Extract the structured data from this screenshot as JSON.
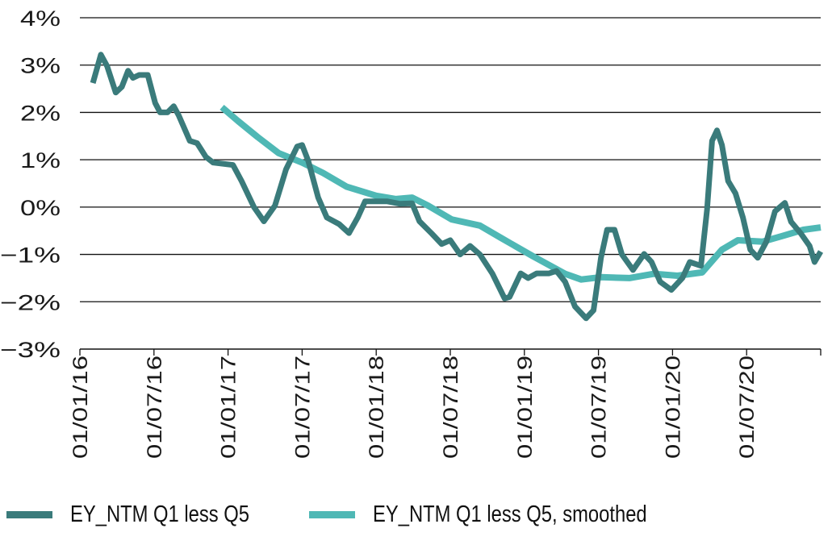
{
  "chart_data": {
    "type": "line",
    "title": "",
    "xlabel": "",
    "ylabel": "",
    "x_unit": "months since 01/01/16",
    "xlim": [
      0,
      60
    ],
    "ylim": [
      -3,
      4
    ],
    "y_ticks": [
      4,
      3,
      2,
      1,
      0,
      -1,
      -2,
      -3
    ],
    "y_tick_labels": [
      "4%",
      "3%",
      "2%",
      "1%",
      "0%",
      "−1%",
      "−2%",
      "−3%"
    ],
    "x_ticks": [
      0,
      6,
      12,
      18,
      24,
      30,
      36,
      42,
      48,
      54
    ],
    "x_tick_labels": [
      "01/01/16",
      "01/07/16",
      "01/01/17",
      "01/07/17",
      "01/01/18",
      "01/07/18",
      "01/01/19",
      "01/07/19",
      "01/01/20",
      "01/07/20"
    ],
    "grid": true,
    "legend_position": "bottom",
    "series": [
      {
        "name": "EY_NTM Q1 less Q5",
        "color": "#3a7b7b",
        "x": [
          1.05,
          1.7,
          2.2,
          2.9,
          3.4,
          3.9,
          4.3,
          4.8,
          5.5,
          6.1,
          6.5,
          7.1,
          7.6,
          8.0,
          8.9,
          9.5,
          10.2,
          10.8,
          12.4,
          13.1,
          14.1,
          14.9,
          15.8,
          16.7,
          17.6,
          18.0,
          18.5,
          19.3,
          20,
          21,
          21.8,
          22.5,
          23.1,
          24,
          24.9,
          25.9,
          26.9,
          27.5,
          28.5,
          29.3,
          30,
          30.8,
          31.6,
          32.4,
          33.4,
          34.4,
          34.8,
          35.7,
          36.3,
          37,
          38,
          38.6,
          39.3,
          40.1,
          41.0,
          41.6,
          42.2,
          42.7,
          43.3,
          43.9,
          44.8,
          45.7,
          46.3,
          47,
          47.9,
          48.8,
          49.4,
          50.3,
          50.8,
          51.2,
          51.6,
          52.0,
          52.5,
          53.1,
          53.7,
          54.3,
          54.9,
          55.6,
          56.3,
          57.1,
          57.6,
          58.4,
          59.1,
          59.5,
          60
        ],
        "y": [
          2.62,
          3.22,
          2.98,
          2.42,
          2.54,
          2.88,
          2.73,
          2.79,
          2.79,
          2.2,
          2.0,
          2.0,
          2.13,
          1.94,
          1.4,
          1.35,
          1.06,
          0.94,
          0.89,
          0.55,
          0,
          -0.3,
          0.03,
          0.8,
          1.28,
          1.31,
          0.97,
          0.2,
          -0.22,
          -0.36,
          -0.55,
          -0.22,
          0.12,
          0.12,
          0.12,
          0.07,
          0.08,
          -0.3,
          -0.56,
          -0.78,
          -0.7,
          -1.0,
          -0.82,
          -1.0,
          -1.4,
          -1.93,
          -1.9,
          -1.4,
          -1.5,
          -1.4,
          -1.4,
          -1.35,
          -1.58,
          -2.1,
          -2.35,
          -2.18,
          -1.07,
          -0.48,
          -0.48,
          -1.0,
          -1.33,
          -0.99,
          -1.16,
          -1.58,
          -1.75,
          -1.5,
          -1.16,
          -1.24,
          -0.05,
          1.4,
          1.62,
          1.31,
          0.55,
          0.29,
          -0.22,
          -0.9,
          -1.07,
          -0.73,
          -0.09,
          0.09,
          -0.31,
          -0.56,
          -0.82,
          -1.16,
          -0.94
        ]
      },
      {
        "name": "EY_NTM  Q1 less Q5, smoothed",
        "color": "#4fb8b5",
        "x": [
          11.5,
          12.8,
          14.4,
          16.1,
          18,
          19.7,
          21.6,
          24,
          25.6,
          26.9,
          28.2,
          30.1,
          32.4,
          34.1,
          36.7,
          39.3,
          40.6,
          42.2,
          44.5,
          46.5,
          48.4,
          50.4,
          52,
          53.3,
          55.3,
          56.9,
          58.6,
          60
        ],
        "y": [
          2.11,
          1.82,
          1.48,
          1.14,
          0.94,
          0.72,
          0.43,
          0.24,
          0.17,
          0.2,
          0.03,
          -0.26,
          -0.39,
          -0.65,
          -1.04,
          -1.41,
          -1.53,
          -1.48,
          -1.5,
          -1.41,
          -1.45,
          -1.38,
          -0.9,
          -0.7,
          -0.73,
          -0.61,
          -0.48,
          -0.43
        ]
      }
    ]
  }
}
